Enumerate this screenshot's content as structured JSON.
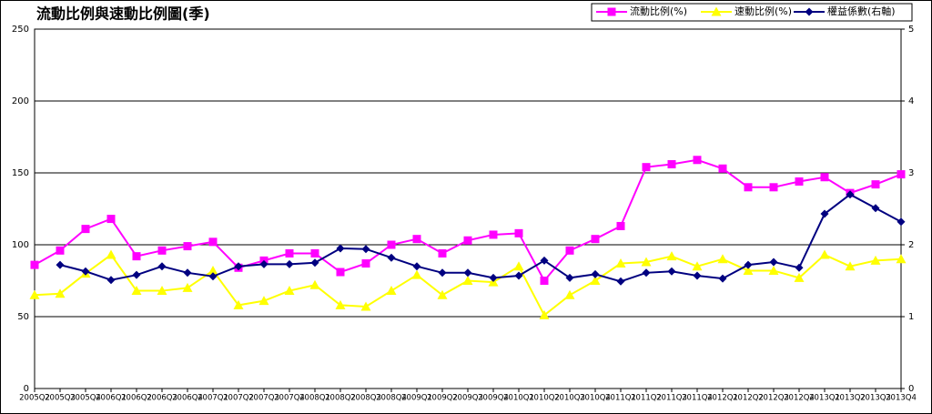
{
  "chart_data": {
    "type": "line",
    "title": "流動比例與速動比例圖(季)",
    "categories": [
      "2005Q2",
      "2005Q3",
      "2005Q4",
      "2006Q1",
      "2006Q2",
      "2006Q3",
      "2006Q4",
      "2007Q1",
      "2007Q2",
      "2007Q3",
      "2007Q4",
      "2008Q1",
      "2008Q2",
      "2008Q3",
      "2008Q4",
      "2009Q1",
      "2009Q2",
      "2009Q3",
      "2009Q4",
      "2010Q1",
      "2010Q2",
      "2010Q3",
      "2010Q4",
      "2011Q1",
      "2011Q2",
      "2011Q3",
      "2011Q4",
      "2012Q1",
      "2012Q2",
      "2012Q3",
      "2012Q4",
      "2013Q1",
      "2013Q2",
      "2013Q3",
      "2013Q4"
    ],
    "series": [
      {
        "name": "流動比例(%)",
        "color": "#ff00ff",
        "marker": "square",
        "values": [
          86,
          96,
          111,
          118,
          92,
          96,
          99,
          102,
          84,
          89,
          94,
          94,
          81,
          87,
          100,
          104,
          94,
          103,
          107,
          108,
          75,
          96,
          104,
          113,
          154,
          156,
          159,
          153,
          140,
          140,
          144,
          147,
          136,
          142,
          149
        ]
      },
      {
        "name": "速動比例(%)",
        "color": "#ffff00",
        "marker": "triangle",
        "values": [
          65,
          66,
          80,
          93,
          68,
          68,
          70,
          82,
          58,
          61,
          68,
          72,
          58,
          57,
          68,
          79,
          65,
          75,
          74,
          85,
          51,
          65,
          75,
          87,
          88,
          92,
          85,
          90,
          82,
          82,
          77,
          93,
          85,
          89,
          90
        ]
      },
      {
        "name": "權益係數(右軸)",
        "color": "#000080",
        "marker": "diamond",
        "axis": "y2",
        "values": [
          null,
          1.72,
          1.63,
          1.51,
          1.58,
          1.7,
          1.61,
          1.56,
          1.7,
          1.73,
          1.73,
          1.75,
          1.95,
          1.94,
          1.82,
          1.7,
          1.61,
          1.61,
          1.54,
          1.57,
          1.78,
          1.54,
          1.59,
          1.49,
          1.61,
          1.63,
          1.57,
          1.53,
          1.72,
          1.76,
          1.68,
          2.43,
          2.7,
          2.51,
          2.32
        ]
      }
    ],
    "ylim": [
      0,
      250
    ],
    "yticks": [
      0,
      50,
      100,
      150,
      200,
      250
    ],
    "y2lim": [
      0,
      5
    ],
    "y2ticks": [
      0,
      1,
      2,
      3,
      4,
      5
    ],
    "grid": true,
    "legend": "top-right"
  }
}
